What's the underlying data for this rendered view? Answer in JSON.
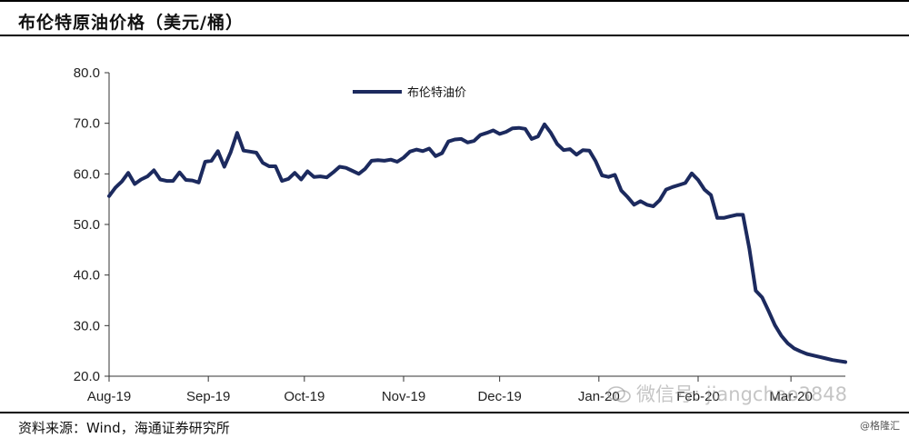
{
  "header": {
    "title": "布伦特原油价格（美元/桶）"
  },
  "footer": {
    "source": "资料来源：Wind，海通证券研究所"
  },
  "watermark": {
    "text": "微信号: jiangchao3848"
  },
  "credit": {
    "text": "@格隆汇"
  },
  "colors": {
    "series": "#1c2a5e",
    "axis": "#333333"
  },
  "chart_data": {
    "type": "line",
    "ylim": [
      20,
      80
    ],
    "yticks": [
      "80.0",
      "70.0",
      "60.0",
      "50.0",
      "40.0",
      "30.0",
      "20.0"
    ],
    "ytick_values": [
      80,
      70,
      60,
      50,
      40,
      30,
      20
    ],
    "xlim": [
      0,
      230
    ],
    "xticks": [
      "Aug-19",
      "Sep-19",
      "Oct-19",
      "Nov-19",
      "Dec-19",
      "Jan-20",
      "Feb-20",
      "Mar-20"
    ],
    "xtick_positions": [
      0,
      31,
      61,
      92,
      122,
      153,
      184,
      213
    ],
    "legend": {
      "position": "top-center"
    },
    "series": [
      {
        "name": "布伦特油价",
        "x": [
          0,
          2,
          4,
          6,
          8,
          10,
          12,
          14,
          16,
          18,
          20,
          22,
          24,
          26,
          28,
          30,
          32,
          34,
          36,
          38,
          40,
          42,
          44,
          46,
          48,
          50,
          52,
          54,
          56,
          58,
          60,
          62,
          64,
          66,
          68,
          70,
          72,
          74,
          76,
          78,
          80,
          82,
          84,
          86,
          88,
          90,
          92,
          94,
          96,
          98,
          100,
          102,
          104,
          106,
          108,
          110,
          112,
          114,
          116,
          118,
          120,
          122,
          124,
          126,
          128,
          130,
          132,
          134,
          136,
          138,
          140,
          142,
          144,
          146,
          148,
          150,
          152,
          154,
          156,
          158,
          160,
          162,
          164,
          166,
          168,
          170,
          172,
          174,
          176,
          178,
          180,
          182,
          184,
          186,
          188,
          190,
          192,
          194,
          196,
          198,
          200,
          202,
          204,
          206,
          208,
          210,
          212,
          214,
          216,
          218,
          220,
          222,
          224,
          226,
          228,
          230
        ],
        "values": [
          55.6,
          57.3,
          58.5,
          60.2,
          58.0,
          58.9,
          59.5,
          60.7,
          58.9,
          58.6,
          58.6,
          60.3,
          58.8,
          58.7,
          58.3,
          62.4,
          62.6,
          64.5,
          61.4,
          64.3,
          68.1,
          64.6,
          64.4,
          64.2,
          62.2,
          61.5,
          61.5,
          58.6,
          59.0,
          60.2,
          58.9,
          60.5,
          59.4,
          59.5,
          59.3,
          60.3,
          61.4,
          61.2,
          60.6,
          60.0,
          61.0,
          62.6,
          62.7,
          62.6,
          62.8,
          62.4,
          63.2,
          64.4,
          64.8,
          64.5,
          65.0,
          63.5,
          64.1,
          66.4,
          66.8,
          66.9,
          66.2,
          66.5,
          67.7,
          68.1,
          68.6,
          67.9,
          68.3,
          69.0,
          69.1,
          68.9,
          66.9,
          67.4,
          69.8,
          68.1,
          65.9,
          64.7,
          64.9,
          63.8,
          64.7,
          64.6,
          62.5,
          59.7,
          59.4,
          59.8,
          56.7,
          55.4,
          53.9,
          54.6,
          53.9,
          53.6,
          54.8,
          56.9,
          57.4,
          57.8,
          58.2,
          60.1,
          58.8,
          56.9,
          55.8,
          51.3,
          51.3,
          51.6,
          51.9,
          51.9,
          45.3,
          36.9,
          35.6,
          32.9,
          30.1,
          28.0,
          26.5,
          25.5,
          24.9,
          24.4,
          24.1,
          23.8,
          23.5,
          23.2,
          23.0,
          22.8
        ]
      }
    ]
  }
}
